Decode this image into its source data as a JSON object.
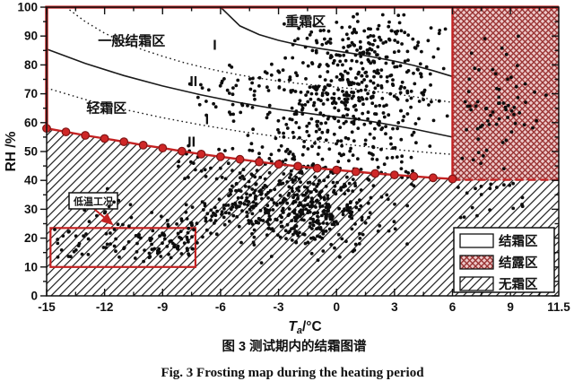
{
  "figure": {
    "caption_zh": "图 3 测试期内的结霜图谱",
    "caption_en": "Fig. 3 Frosting map during the heating period"
  },
  "chart_data": {
    "type": "scatter",
    "title": "Frosting map during the heating period",
    "xlabel": {
      "var": "T",
      "sub": "a",
      "unit": "/°C"
    },
    "ylabel": "RH /%",
    "xlim": [
      -15,
      11.5
    ],
    "ylim": [
      0,
      100
    ],
    "x_tick_values": [
      -15,
      -12,
      -9,
      -6,
      -3,
      0,
      3,
      6,
      9,
      11.5
    ],
    "x_tick_labels": [
      "-15",
      "-12",
      "-9",
      "-6",
      "-3",
      "0",
      "3",
      "6",
      "9",
      "11.5"
    ],
    "x_minor_step": 1.5,
    "y_tick_values": [
      0,
      10,
      20,
      30,
      40,
      50,
      60,
      70,
      80,
      90,
      100
    ],
    "y_tick_labels": [
      "0",
      "10",
      "20",
      "30",
      "40",
      "50",
      "60",
      "70",
      "80",
      "90",
      "100"
    ],
    "y_minor_step": 5,
    "zone_labels": [
      {
        "name": "heavy-frost-zone-label",
        "label": "重霜区",
        "ta": -1.6,
        "rh": 95.0,
        "size": 15,
        "cjk": true
      },
      {
        "name": "general-frost-zone-label",
        "label": "一般结霜区",
        "ta": -10.6,
        "rh": 88.3,
        "size": 15,
        "cjk": true
      },
      {
        "name": "light-frost-zone-label",
        "label": "轻霜区",
        "ta": -11.9,
        "rh": 65.0,
        "size": 15,
        "cjk": true
      },
      {
        "name": "subzone-I-upper-label",
        "label": "I",
        "ta": -6.3,
        "rh": 86.8,
        "size": 16,
        "cjk": false
      },
      {
        "name": "subzone-II-upper-label",
        "label": "II",
        "ta": -7.4,
        "rh": 74.3,
        "size": 16,
        "cjk": false
      },
      {
        "name": "subzone-I-lower-label",
        "label": "I",
        "ta": -6.7,
        "rh": 61.0,
        "size": 16,
        "cjk": false
      },
      {
        "name": "subzone-II-lower-label",
        "label": "II",
        "ta": -7.5,
        "rh": 53.2,
        "size": 16,
        "cjk": false
      }
    ],
    "boundary_curves": [
      {
        "id": "severe-general-boundary",
        "style": "solid",
        "points": [
          [
            -6,
            100
          ],
          [
            -5,
            93.5
          ],
          [
            -4,
            90.5
          ],
          [
            -3,
            88.5
          ],
          [
            -2,
            87
          ],
          [
            -1,
            85.8
          ],
          [
            0,
            84.8
          ],
          [
            1,
            83.8
          ],
          [
            2,
            82.6
          ],
          [
            3,
            81.3
          ],
          [
            4,
            79.8
          ],
          [
            5,
            78
          ],
          [
            6,
            76
          ]
        ]
      },
      {
        "id": "general-subzone-divider",
        "style": "dotted",
        "points": [
          [
            -14,
            100
          ],
          [
            -13,
            95
          ],
          [
            -12,
            91
          ],
          [
            -11,
            87.8
          ],
          [
            -10,
            85.2
          ],
          [
            -9,
            83
          ],
          [
            -8,
            81
          ],
          [
            -7,
            79.3
          ],
          [
            -6,
            77.8
          ],
          [
            -5,
            76.5
          ],
          [
            -4,
            75.4
          ],
          [
            -3,
            74.4
          ],
          [
            -2,
            73.6
          ],
          [
            -1,
            72.9
          ],
          [
            0,
            72.3
          ],
          [
            1,
            71.6
          ],
          [
            2,
            70.8
          ],
          [
            3,
            70
          ],
          [
            4,
            69
          ],
          [
            5,
            68
          ],
          [
            6,
            67
          ]
        ]
      },
      {
        "id": "general-light-boundary",
        "style": "solid",
        "points": [
          [
            -15,
            85.5
          ],
          [
            -13,
            80.5
          ],
          [
            -11,
            76.3
          ],
          [
            -9,
            72.7
          ],
          [
            -7,
            69.6
          ],
          [
            -5,
            66.9
          ],
          [
            -3,
            64.6
          ],
          [
            -1,
            62.8
          ],
          [
            0,
            62
          ],
          [
            1,
            61.2
          ],
          [
            2,
            60.2
          ],
          [
            3,
            59
          ],
          [
            4,
            57.8
          ],
          [
            5,
            56.4
          ],
          [
            6,
            55
          ]
        ]
      },
      {
        "id": "light-subzone-divider",
        "style": "dotted",
        "points": [
          [
            -15,
            72
          ],
          [
            -13,
            68
          ],
          [
            -11,
            64.6
          ],
          [
            -9,
            61.7
          ],
          [
            -7,
            59.2
          ],
          [
            -5,
            57
          ],
          [
            -3,
            55.1
          ],
          [
            -1,
            53.5
          ],
          [
            0,
            52.8
          ],
          [
            1,
            52.1
          ],
          [
            2,
            51.4
          ],
          [
            3,
            50.7
          ],
          [
            4,
            50.1
          ],
          [
            5,
            49.5
          ],
          [
            6,
            49
          ]
        ]
      }
    ],
    "frost_boundary_line": {
      "points": [
        [
          -15,
          58
        ],
        [
          -14,
          56.8
        ],
        [
          -13,
          55.6
        ],
        [
          -12,
          54.5
        ],
        [
          -11,
          53.4
        ],
        [
          -10,
          52.2
        ],
        [
          -9,
          51.2
        ],
        [
          -8,
          50.1
        ],
        [
          -7,
          49.1
        ],
        [
          -6,
          48.2
        ],
        [
          -5,
          47.3
        ],
        [
          -4,
          46.4
        ],
        [
          -3,
          45.6
        ],
        [
          -2,
          44.9
        ],
        [
          -1,
          44.2
        ],
        [
          0,
          43.6
        ],
        [
          1,
          43
        ],
        [
          2,
          42.4
        ],
        [
          3,
          41.9
        ],
        [
          4,
          41.4
        ],
        [
          5,
          40.9
        ],
        [
          6,
          40.5
        ]
      ],
      "dashed_tail": [
        [
          6,
          40.2
        ],
        [
          11.5,
          40.2
        ]
      ]
    },
    "dew_region": {
      "ta_min": 6,
      "ta_max": 11.5,
      "rh_min": 40,
      "rh_max": 100
    },
    "low_temp_annotation": {
      "label": "低温工况",
      "box_ta": [
        -14.8,
        -7.3
      ],
      "box_rh": [
        10,
        23.5
      ]
    },
    "legend": {
      "items": [
        {
          "pattern": "blank",
          "label": "结霜区"
        },
        {
          "pattern": "crosshatch",
          "label": "结露区"
        },
        {
          "pattern": "hatch",
          "label": "无霜区"
        }
      ]
    },
    "scatter_seed": 7,
    "scatter_clusters": [
      {
        "name": "low-temp-strip",
        "dist": "uniform",
        "n": 62,
        "ta": [
          -14.6,
          -7.7
        ],
        "rh": [
          13,
          23
        ]
      },
      {
        "name": "left-sparse",
        "dist": "uniform",
        "n": 16,
        "ta": [
          -13.2,
          -8.8
        ],
        "rh": [
          24,
          38
        ]
      },
      {
        "name": "rising-band",
        "dist": "band",
        "n": 125,
        "from": [
          -9.3,
          16
        ],
        "to": [
          -3.4,
          41
        ],
        "jitter": [
          1.3,
          5.5
        ]
      },
      {
        "name": "low-dense",
        "dist": "gauss",
        "n": 400,
        "center": [
          -1.7,
          29.5
        ],
        "sd": [
          2.0,
          6.5
        ],
        "clip_ta": [
          -7,
          5.5
        ],
        "clip_rh": [
          11,
          49
        ]
      },
      {
        "name": "mid-band",
        "dist": "uniform",
        "n": 90,
        "ta": [
          -4.5,
          4
        ],
        "rh": [
          38,
          55
        ]
      },
      {
        "name": "mid-frost-dense",
        "dist": "gauss",
        "n": 420,
        "center": [
          0.6,
          70
        ],
        "sd": [
          2.4,
          10
        ],
        "clip_ta": [
          -5.8,
          6
        ],
        "clip_rh": [
          44,
          97
        ]
      },
      {
        "name": "frost-left-arm",
        "dist": "gauss",
        "n": 42,
        "center": [
          -5.2,
          70
        ],
        "sd": [
          1.0,
          4.5
        ],
        "clip_ta": [
          -7.6,
          -3.5
        ],
        "clip_rh": [
          60,
          80
        ]
      },
      {
        "name": "frost-top",
        "dist": "gauss",
        "n": 85,
        "center": [
          1.6,
          88.5
        ],
        "sd": [
          1.7,
          4.2
        ],
        "clip_ta": [
          -3,
          5.5
        ],
        "clip_rh": [
          80,
          98
        ]
      },
      {
        "name": "near-line-left",
        "dist": "uniform",
        "n": 22,
        "ta": [
          -8.2,
          -5.2
        ],
        "rh": [
          39,
          52
        ]
      },
      {
        "name": "dew-cluster",
        "dist": "gauss",
        "n": 78,
        "center": [
          8.1,
          66
        ],
        "sd": [
          1.3,
          12
        ],
        "clip_ta": [
          6.4,
          11
        ],
        "clip_rh": [
          42,
          93
        ]
      },
      {
        "name": "right-below-line",
        "dist": "uniform",
        "n": 20,
        "ta": [
          6.1,
          9.7
        ],
        "rh": [
          27,
          39
        ]
      }
    ],
    "colors": {
      "red": "#c32222",
      "marker_fill": "#cf2727",
      "marker_edge": "#7e1414",
      "dew_bg": "#edc9c9",
      "dew_line": "#9a3434",
      "ink": "#111111"
    }
  }
}
